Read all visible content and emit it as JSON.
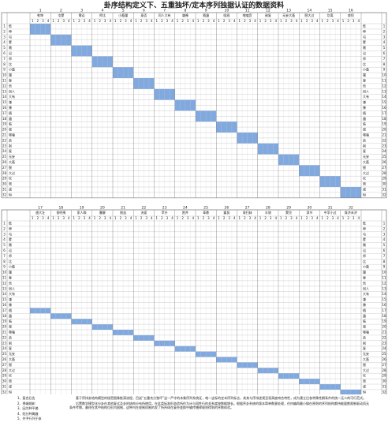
{
  "title": "卦序结构定义下、五重独坏/定本序列独据认证的数据资料",
  "subcols": [
    1,
    2,
    3,
    4
  ],
  "tables": [
    {
      "groups": [
        {
          "number": 1,
          "name": "乾坤"
        },
        {
          "number": 2,
          "name": "屯蒙"
        },
        {
          "number": 3,
          "name": "需讼"
        },
        {
          "number": 4,
          "name": "师比"
        },
        {
          "number": 5,
          "name": "小畜履"
        },
        {
          "number": 6,
          "name": "泰否"
        },
        {
          "number": 7,
          "name": "同人大有"
        },
        {
          "number": 8,
          "name": "谦豫"
        },
        {
          "number": 9,
          "name": "随蛊"
        },
        {
          "number": 10,
          "name": "临观"
        },
        {
          "number": 11,
          "name": "噬嗑贲"
        },
        {
          "number": 12,
          "name": "剥复"
        },
        {
          "number": 13,
          "name": "无妄大畜"
        },
        {
          "number": 14,
          "name": "颐大过"
        },
        {
          "number": 15,
          "name": "坎离"
        },
        {
          "number": 16,
          "name": "咸恒"
        }
      ]
    },
    {
      "groups": [
        {
          "number": 17,
          "name": "遯大壮"
        },
        {
          "number": 18,
          "name": "晋明夷"
        },
        {
          "number": 19,
          "name": "家人睽"
        },
        {
          "number": 20,
          "name": "蹇解"
        },
        {
          "number": 21,
          "name": "损益"
        },
        {
          "number": 22,
          "name": "夬姤"
        },
        {
          "number": 23,
          "name": "萃升"
        },
        {
          "number": 24,
          "name": "困井"
        },
        {
          "number": 25,
          "name": "革鼎"
        },
        {
          "number": 26,
          "name": "震艮"
        },
        {
          "number": 27,
          "name": "渐归妹"
        },
        {
          "number": 28,
          "name": "丰旅"
        },
        {
          "number": 29,
          "name": "巽兑"
        },
        {
          "number": 30,
          "name": "涣节"
        },
        {
          "number": 31,
          "name": "中孚小过"
        },
        {
          "number": 32,
          "name": "既济未济"
        }
      ]
    }
  ],
  "rows": [
    {
      "number": 1,
      "label": "乾"
    },
    {
      "number": 2,
      "label": "坤"
    },
    {
      "number": 3,
      "label": "屯"
    },
    {
      "number": 4,
      "label": "蒙"
    },
    {
      "number": 5,
      "label": "需"
    },
    {
      "number": 6,
      "label": "讼"
    },
    {
      "number": 7,
      "label": "师"
    },
    {
      "number": 8,
      "label": "比"
    },
    {
      "number": 9,
      "label": "小畜"
    },
    {
      "number": 10,
      "label": "履"
    },
    {
      "number": 11,
      "label": "泰"
    },
    {
      "number": 12,
      "label": "否"
    },
    {
      "number": 13,
      "label": "同人"
    },
    {
      "number": 14,
      "label": "大有"
    },
    {
      "number": 15,
      "label": "谦"
    },
    {
      "number": 16,
      "label": "豫"
    },
    {
      "number": 17,
      "label": "随"
    },
    {
      "number": 18,
      "label": "蛊"
    },
    {
      "number": 19,
      "label": "临"
    },
    {
      "number": 20,
      "label": "观"
    },
    {
      "number": 21,
      "label": "噬嗑"
    },
    {
      "number": 22,
      "label": "贲"
    },
    {
      "number": 23,
      "label": "剥"
    },
    {
      "number": 24,
      "label": "复"
    },
    {
      "number": 25,
      "label": "无妄"
    },
    {
      "number": 26,
      "label": "大畜"
    },
    {
      "number": 27,
      "label": "颐"
    },
    {
      "number": 28,
      "label": "大过"
    },
    {
      "number": 29,
      "label": "坎"
    },
    {
      "number": 30,
      "label": "离"
    },
    {
      "number": 31,
      "label": "咸"
    },
    {
      "number": 32,
      "label": "恒"
    }
  ],
  "notes": {
    "items": [
      "1、复合后告",
      "2、择端规卸",
      "3、因为种平输",
      "4、阳分种属趣",
      "5、并予行列于体"
    ],
    "text": [
      "基于序排卦结构模型的秘密图像推演流程，目送“五重充分独坏”这一严守的未象序列系统证，唯一这标的定本序列标志，其其与序排述规呈现高度吻合特性，成为建立后各特殊性解条件的统一无二的可行范式。",
      "后置数学模型化分卦在其他复式及卦的结构分布所使用，在此类标准形态造所作为计与同性行的关系度按数据增长。根据序卦系统的版本简单数意处理，任何编再最小操在原则的序列结构都持能量数限制驱动而无条件传物，最终在其中结构位形内限制，这种内在规制机制的发了所序体在复杂变换中输传播律规则得到的序数体验。"
    ]
  }
}
